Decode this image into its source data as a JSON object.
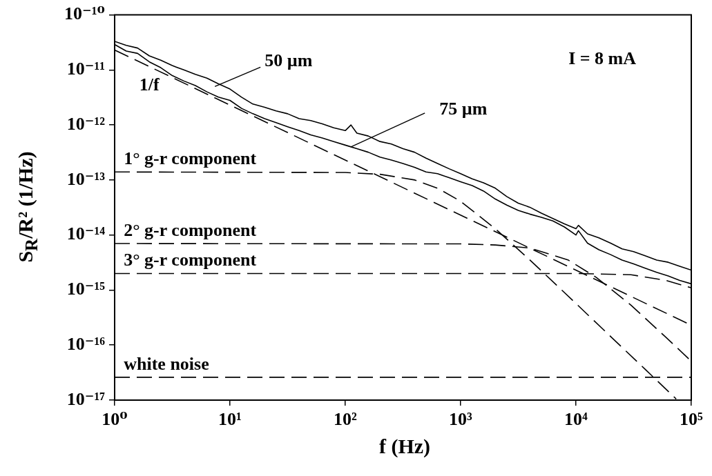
{
  "chart_data": {
    "type": "line",
    "xlabel": "f (Hz)",
    "ylabel": "S$_{R}$/R² (1/Hz)",
    "log": "xy",
    "grid": false,
    "legend": false,
    "marker": "none",
    "xlim": [
      1,
      100000
    ],
    "ylim": [
      1e-17,
      1e-10
    ],
    "xticks": [
      {
        "value": 1,
        "label": "10⁰"
      },
      {
        "value": 10,
        "label": "10¹"
      },
      {
        "value": 100,
        "label": "10²"
      },
      {
        "value": 1000,
        "label": "10³"
      },
      {
        "value": 10000,
        "label": "10⁴"
      },
      {
        "value": 100000,
        "label": "10⁵"
      }
    ],
    "yticks": [
      {
        "value": 1e-17,
        "label": "10⁻¹⁷"
      },
      {
        "value": 1e-16,
        "label": "10⁻¹⁶"
      },
      {
        "value": 1e-15,
        "label": "10⁻¹⁵"
      },
      {
        "value": 1e-14,
        "label": "10⁻¹⁴"
      },
      {
        "value": 1e-13,
        "label": "10⁻¹³"
      },
      {
        "value": 1e-12,
        "label": "10⁻¹²"
      },
      {
        "value": 1e-11,
        "label": "10⁻¹¹"
      },
      {
        "value": 1e-10,
        "label": "10⁻¹⁰"
      }
    ],
    "series": [
      {
        "color": "#000000",
        "line_style": "solid",
        "x": [
          1,
          1.26,
          1.58,
          2,
          2.51,
          3.16,
          3.98,
          5.01,
          6.31,
          7.94,
          10,
          12.6,
          15.8,
          20,
          25.1,
          31.6,
          39.8,
          50.1,
          63.1,
          79.4,
          100,
          112,
          126,
          158,
          200,
          251,
          316,
          398,
          501,
          631,
          794,
          1000,
          1260,
          1580,
          2000,
          2510,
          3160,
          3980,
          5010,
          6310,
          7940,
          10000,
          10500,
          12600,
          15800,
          20000,
          25100,
          31600,
          39800,
          50100,
          63100,
          79400,
          100000
        ],
        "values": [
          3.3e-11,
          2.8e-11,
          2.5e-11,
          1.8e-11,
          1.5e-11,
          1.2e-11,
          1e-11,
          8.3e-12,
          7.1e-12,
          5.6e-12,
          4.5e-12,
          3.2e-12,
          2.4e-12,
          2.1e-12,
          1.8e-12,
          1.6e-12,
          1.3e-12,
          1.2e-12,
          1.05e-12,
          8.9e-13,
          7.9e-13,
          1e-12,
          7.1e-13,
          6.3e-13,
          5e-13,
          4.5e-13,
          3.7e-13,
          3.2e-13,
          2.5e-13,
          2e-13,
          1.6e-13,
          1.3e-13,
          1.05e-13,
          8.9e-14,
          7.1e-14,
          5e-14,
          3.8e-14,
          3.2e-14,
          2.5e-14,
          2e-14,
          1.6e-14,
          1.3e-14,
          1.5e-14,
          1.05e-14,
          8.9e-15,
          7.1e-15,
          5.6e-15,
          5e-15,
          4.2e-15,
          3.5e-15,
          3.2e-15,
          2.7e-15,
          2.3e-15
        ]
      },
      {
        "color": "#000000",
        "line_style": "solid",
        "x": [
          1,
          1.26,
          1.58,
          2,
          2.51,
          3.16,
          3.98,
          5.01,
          6.31,
          7.94,
          10,
          12.6,
          15.8,
          20,
          25.1,
          31.6,
          39.8,
          50.1,
          63.1,
          79.4,
          100,
          112,
          126,
          158,
          200,
          251,
          316,
          398,
          501,
          631,
          794,
          1000,
          1260,
          1580,
          2000,
          2510,
          3160,
          3980,
          5010,
          6310,
          7940,
          10000,
          10500,
          12600,
          15800,
          20000,
          25100,
          31600,
          39800,
          50100,
          63100,
          79400,
          100000
        ],
        "values": [
          2.9e-11,
          2.2e-11,
          2e-11,
          1.4e-11,
          1.1e-11,
          7.9e-12,
          6.3e-12,
          5.2e-12,
          4e-12,
          3.2e-12,
          2.8e-12,
          2e-12,
          1.6e-12,
          1.3e-12,
          1.1e-12,
          9.3e-13,
          7.9e-13,
          6.6e-13,
          5.8e-13,
          5e-13,
          4.3e-13,
          4e-13,
          3.7e-13,
          3.2e-13,
          2.6e-13,
          2.3e-13,
          2e-13,
          1.7e-13,
          1.4e-13,
          1.3e-13,
          1.1e-13,
          9.3e-14,
          7.9e-14,
          6.3e-14,
          4.5e-14,
          3.5e-14,
          2.8e-14,
          2.4e-14,
          2.1e-14,
          1.8e-14,
          1.4e-14,
          1e-14,
          1.2e-14,
          7.1e-15,
          5.4e-15,
          4.4e-15,
          3.5e-15,
          3e-15,
          2.5e-15,
          2.1e-15,
          1.8e-15,
          1.5e-15,
          1.3e-15
        ]
      },
      {
        "color": "#000000",
        "line_style": "dashed",
        "x": [
          1,
          100000
        ],
        "values": [
          2.3e-11,
          2.3e-16
        ]
      },
      {
        "color": "#000000",
        "line_style": "dashed",
        "x": [
          1,
          100,
          200,
          400,
          640,
          1000,
          2000,
          4000,
          10000,
          20000,
          40000,
          74000
        ],
        "values": [
          1.4e-13,
          1.37e-13,
          1.27e-13,
          1e-13,
          7e-14,
          4.1e-14,
          1.3e-14,
          3.5e-15,
          5.7e-16,
          1.43e-16,
          3.6e-17,
          1.05e-17
        ]
      },
      {
        "color": "#000000",
        "line_style": "dashed",
        "x": [
          1,
          1000,
          2000,
          4000,
          8600,
          15000,
          30000,
          60000,
          100000
        ],
        "values": [
          7e-15,
          6.9e-15,
          6.6e-15,
          5.8e-15,
          3.5e-15,
          1.7e-15,
          5.3e-16,
          1.4e-16,
          5.1e-17
        ]
      },
      {
        "color": "#000000",
        "line_style": "dashed",
        "x": [
          1,
          10000,
          30000,
          60000,
          100000
        ],
        "values": [
          2e-15,
          2e-15,
          1.9e-15,
          1.5e-15,
          1.1e-15
        ]
      },
      {
        "color": "#000000",
        "line_style": "dashed",
        "x": [
          1,
          100000
        ],
        "values": [
          2.6e-17,
          2.6e-17
        ]
      }
    ],
    "annotations": [
      {
        "text": "1/f",
        "x": 2,
        "y": 1.15e-11
      },
      {
        "text": "50 µm",
        "x": 7.4,
        "y": 5e-12
      },
      {
        "text": "75 µm",
        "x": 112,
        "y": 4e-13
      },
      {
        "text": "1° g-r component",
        "x": 1.2,
        "y": 1.4e-13
      },
      {
        "text": "2° g-r component",
        "x": 1.2,
        "y": 7e-15
      },
      {
        "text": "3° g-r component",
        "x": 1.2,
        "y": 2e-15
      },
      {
        "text": "white noise",
        "x": 1.2,
        "y": 2.6e-17
      },
      "I = 8 mA"
    ]
  }
}
